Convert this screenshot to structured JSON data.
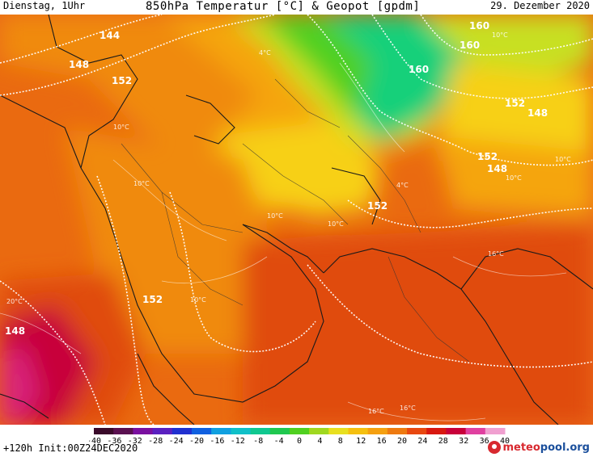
{
  "header": {
    "left": "Dienstag, 1Uhr",
    "title": "850hPa Temperatur [°C] & Geopot [gpdm]",
    "right": "29. Dezember 2020"
  },
  "footer": {
    "run": "+120h Init:00Z24DEC2020",
    "brand_part1": "meteo",
    "brand_part2": "pool.org"
  },
  "colors": {
    "deep_red": "#c8003a",
    "red": "#e04b10",
    "orange_red": "#ea6a10",
    "orange": "#f08a10",
    "amber": "#f5a50e",
    "yellow": "#f7d012",
    "yellow_green": "#c8e020",
    "green": "#4fd020",
    "teal": "#13d07a"
  },
  "scale": {
    "labels": [
      "-40",
      "-36",
      "-32",
      "-28",
      "-24",
      "-20",
      "-16",
      "-12",
      "-8",
      "-4",
      "0",
      "4",
      "8",
      "12",
      "16",
      "20",
      "24",
      "28",
      "32",
      "36",
      "40"
    ],
    "colors": [
      "#3a0a2a",
      "#5a1050",
      "#7a10a0",
      "#5a20c0",
      "#2030d0",
      "#1060e0",
      "#10a0e0",
      "#10c0c8",
      "#10c890",
      "#20c850",
      "#50d020",
      "#a0d820",
      "#e8e020",
      "#f5c010",
      "#f5a010",
      "#ee7a10",
      "#e84810",
      "#d81810",
      "#c8003a",
      "#e040a0",
      "#f0a0d0"
    ]
  },
  "map": {
    "geopotential_labels": [
      "144",
      "148",
      "152",
      "160",
      "160",
      "152",
      "148",
      "152",
      "148",
      "152",
      "148",
      "152",
      "160"
    ],
    "temperature_labels": [
      "10°C",
      "10°C",
      "10°C",
      "10°C",
      "16°C",
      "16°C",
      "20°C",
      "16°C",
      "10°C",
      "4°C",
      "10°C",
      "10°C",
      "10°C",
      "4°C"
    ]
  }
}
